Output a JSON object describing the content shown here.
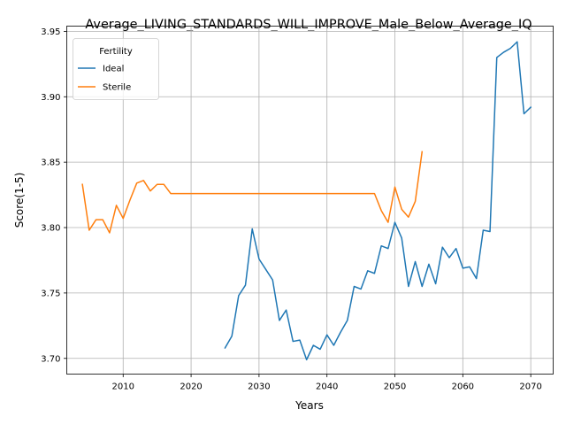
{
  "chart_data": {
    "type": "line",
    "title": "Average_LIVING_STANDARDS_WILL_IMPROVE_Male_Below_Average_IQ",
    "xlabel": "Years",
    "ylabel": "Score(1-5)",
    "xlim": [
      2001.7,
      2073.3
    ],
    "ylim": [
      3.688,
      3.954
    ],
    "x_ticks": [
      2010,
      2020,
      2030,
      2040,
      2050,
      2060,
      2070
    ],
    "y_ticks": [
      3.7,
      3.75,
      3.8,
      3.85,
      3.9,
      3.95
    ],
    "x_tick_labels": [
      "2010",
      "2020",
      "2030",
      "2040",
      "2050",
      "2060",
      "2070"
    ],
    "y_tick_labels": [
      "3.70",
      "3.75",
      "3.80",
      "3.85",
      "3.90",
      "3.95"
    ],
    "grid": true,
    "legend": {
      "title": "Fertility",
      "placement": "upper-left"
    },
    "series": [
      {
        "name": "Ideal",
        "color": "#1f77b4",
        "x": [
          2025,
          2026,
          2027,
          2028,
          2029,
          2030,
          2031,
          2032,
          2033,
          2034,
          2035,
          2036,
          2037,
          2038,
          2039,
          2040,
          2041,
          2042,
          2043,
          2044,
          2045,
          2046,
          2047,
          2048,
          2049,
          2050,
          2051,
          2052,
          2053,
          2054,
          2055,
          2056,
          2057,
          2058,
          2059,
          2060,
          2061,
          2062,
          2063,
          2064,
          2065,
          2066,
          2067,
          2068,
          2069,
          2070
        ],
        "y": [
          3.708,
          3.717,
          3.748,
          3.756,
          3.799,
          3.776,
          3.768,
          3.76,
          3.729,
          3.737,
          3.713,
          3.714,
          3.699,
          3.71,
          3.707,
          3.718,
          3.71,
          3.72,
          3.729,
          3.755,
          3.753,
          3.767,
          3.765,
          3.786,
          3.784,
          3.804,
          3.792,
          3.755,
          3.774,
          3.755,
          3.772,
          3.757,
          3.785,
          3.777,
          3.784,
          3.769,
          3.77,
          3.761,
          3.798,
          3.797,
          3.93,
          3.934,
          3.937,
          3.942,
          3.887,
          3.892
        ]
      },
      {
        "name": "Sterile",
        "color": "#ff7f0e",
        "x": [
          2004,
          2005,
          2006,
          2007,
          2008,
          2009,
          2010,
          2011,
          2012,
          2013,
          2014,
          2015,
          2016,
          2017,
          2018,
          2019,
          2020,
          2021,
          2022,
          2023,
          2024,
          2025,
          2026,
          2027,
          2028,
          2029,
          2030,
          2031,
          2032,
          2033,
          2034,
          2035,
          2036,
          2037,
          2038,
          2039,
          2040,
          2041,
          2042,
          2043,
          2044,
          2045,
          2046,
          2047,
          2048,
          2049,
          2050,
          2051,
          2052,
          2053,
          2054
        ],
        "y": [
          3.833,
          3.798,
          3.806,
          3.806,
          3.796,
          3.817,
          3.807,
          3.821,
          3.834,
          3.836,
          3.828,
          3.833,
          3.833,
          3.826,
          3.826,
          3.826,
          3.826,
          3.826,
          3.826,
          3.826,
          3.826,
          3.826,
          3.826,
          3.826,
          3.826,
          3.826,
          3.826,
          3.826,
          3.826,
          3.826,
          3.826,
          3.826,
          3.826,
          3.826,
          3.826,
          3.826,
          3.826,
          3.826,
          3.826,
          3.826,
          3.826,
          3.826,
          3.826,
          3.826,
          3.813,
          3.804,
          3.831,
          3.814,
          3.808,
          3.82,
          3.858
        ]
      }
    ]
  }
}
